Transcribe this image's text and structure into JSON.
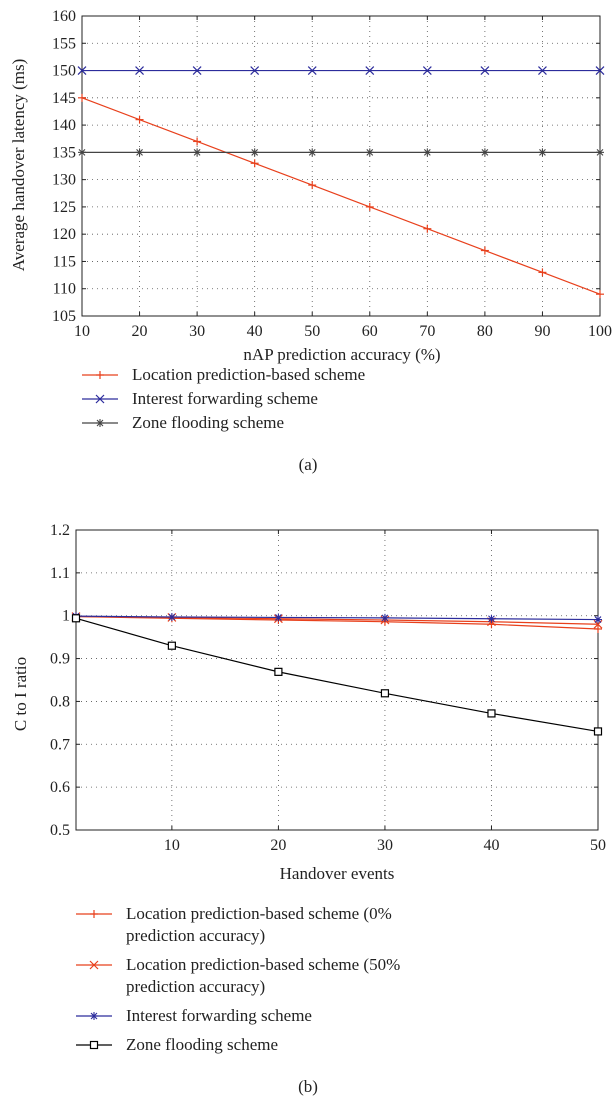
{
  "chart_data": [
    {
      "type": "line",
      "xlabel": "nAP prediction accuracy (%)",
      "ylabel": "Average handover latency (ms)",
      "xlim": [
        10,
        100
      ],
      "ylim": [
        105,
        160
      ],
      "xticks": [
        10,
        20,
        30,
        40,
        50,
        60,
        70,
        80,
        90,
        100
      ],
      "yticks": [
        105,
        110,
        115,
        120,
        125,
        130,
        135,
        140,
        145,
        150,
        155,
        160
      ],
      "grid": true,
      "legend_placement": "below",
      "caption": "(a)",
      "x": [
        10,
        20,
        30,
        40,
        50,
        60,
        70,
        80,
        90,
        100
      ],
      "series": [
        {
          "name": "Location prediction-based scheme",
          "marker": "plus",
          "color": "#e8401c",
          "values": [
            145,
            141,
            137,
            133,
            129,
            125,
            121,
            117,
            113,
            109
          ]
        },
        {
          "name": "Interest forwarding scheme",
          "marker": "x",
          "color": "#2c2c9c",
          "values": [
            150,
            150,
            150,
            150,
            150,
            150,
            150,
            150,
            150,
            150
          ]
        },
        {
          "name": "Zone flooding scheme",
          "marker": "asterisk",
          "color": "#444444",
          "values": [
            135,
            135,
            135,
            135,
            135,
            135,
            135,
            135,
            135,
            135
          ]
        }
      ]
    },
    {
      "type": "line",
      "xlabel": "Handover events",
      "ylabel": "C to I ratio",
      "xlim": [
        1,
        50
      ],
      "ylim": [
        0.5,
        1.2
      ],
      "xticks": [
        10,
        20,
        30,
        40,
        50
      ],
      "yticks": [
        0.5,
        0.6,
        0.7,
        0.8,
        0.9,
        1,
        1.1,
        1.2
      ],
      "ytick_labels": [
        "0.5",
        "0.6",
        "0.7",
        "0.8",
        "0.9",
        "1",
        "1.1",
        "1.2"
      ],
      "grid": true,
      "legend_placement": "below",
      "caption": "(b)",
      "x": [
        1,
        10,
        20,
        30,
        40,
        50
      ],
      "series": [
        {
          "name": "Location prediction-based scheme (0% prediction accuracy)",
          "marker": "plus",
          "color": "#e8401c",
          "values": [
            0.998,
            0.994,
            0.99,
            0.986,
            0.98,
            0.969
          ]
        },
        {
          "name": "Location prediction-based scheme (50% prediction accuracy)",
          "marker": "x",
          "color": "#e8401c",
          "values": [
            0.998,
            0.996,
            0.993,
            0.99,
            0.986,
            0.98
          ]
        },
        {
          "name": "Interest forwarding scheme",
          "marker": "asterisk",
          "color": "#2c2c9c",
          "values": [
            0.999,
            0.997,
            0.996,
            0.995,
            0.993,
            0.991
          ]
        },
        {
          "name": "Zone flooding scheme",
          "marker": "square",
          "color": "#000000",
          "values": [
            0.994,
            0.93,
            0.869,
            0.819,
            0.772,
            0.73
          ]
        }
      ]
    }
  ]
}
